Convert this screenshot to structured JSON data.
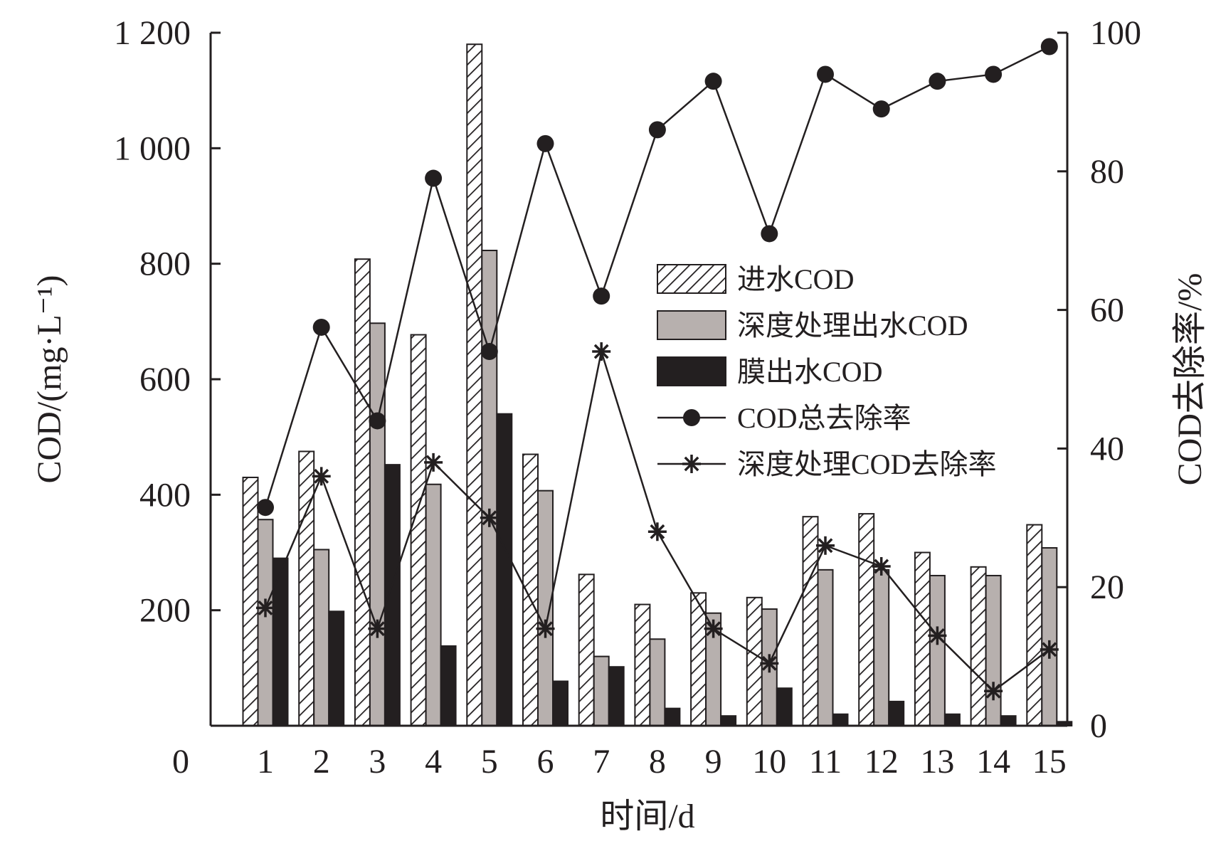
{
  "chart_data": {
    "type": "bar",
    "categories": [
      "1",
      "2",
      "3",
      "4",
      "5",
      "6",
      "7",
      "8",
      "9",
      "10",
      "11",
      "12",
      "13",
      "14",
      "15"
    ],
    "xlabel": "时间/d",
    "ylabel_left": "COD/(mg·L⁻¹)",
    "ylabel_right": "COD去除率/%",
    "x_origin_label": "0",
    "ylim_left": [
      0,
      1200
    ],
    "ylim_right": [
      0,
      100
    ],
    "yticks_left": [
      200,
      400,
      600,
      800,
      1000,
      1200
    ],
    "ytick_labels_left": [
      "200",
      "400",
      "600",
      "800",
      "1 000",
      "1 200"
    ],
    "yticks_right": [
      0,
      20,
      40,
      60,
      80,
      100
    ],
    "ytick_labels_right": [
      "0",
      "20",
      "40",
      "60",
      "80",
      "100"
    ],
    "legend_position": "center-right",
    "grid": false,
    "bar_series": [
      {
        "name": "进水COD",
        "style": "hatched",
        "color": "#ffffff",
        "values": [
          430,
          475,
          808,
          677,
          1180,
          470,
          262,
          210,
          230,
          222,
          362,
          367,
          300,
          275,
          348
        ]
      },
      {
        "name": "深度处理出水COD",
        "style": "gray",
        "color": "#b7b0ae",
        "values": [
          357,
          305,
          697,
          418,
          823,
          407,
          120,
          150,
          195,
          202,
          270,
          270,
          260,
          260,
          308
        ]
      },
      {
        "name": "膜出水COD",
        "style": "black",
        "color": "#231f20",
        "values": [
          290,
          198,
          452,
          138,
          540,
          77,
          102,
          30,
          17,
          65,
          20,
          42,
          20,
          17,
          7
        ]
      }
    ],
    "line_series": [
      {
        "name": "COD总去除率",
        "marker": "circle",
        "axis": "right",
        "values": [
          31.5,
          57.5,
          44,
          79,
          54,
          84,
          62,
          86,
          93,
          71,
          94,
          89,
          93,
          94,
          98
        ]
      },
      {
        "name": "深度处理COD去除率",
        "marker": "asterisk",
        "axis": "right",
        "values": [
          17,
          36,
          14,
          38,
          30,
          14,
          54,
          28,
          14,
          9,
          26,
          23,
          13,
          5,
          11
        ]
      }
    ]
  }
}
